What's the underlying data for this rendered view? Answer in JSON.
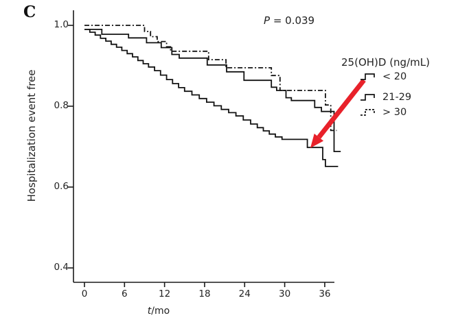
{
  "panel_label": "C",
  "annotation": {
    "p_symbol": "P",
    "p_rest": " = 0.039"
  },
  "y_axis": {
    "title": "Hospitalization event free",
    "tick_labels": [
      "1.0",
      "0.8",
      "0.6",
      "0.4"
    ],
    "tick_values": [
      1.0,
      0.8,
      0.6,
      0.4
    ]
  },
  "x_axis": {
    "title_italic": "t",
    "title_rest": "/mo",
    "tick_labels": [
      "0",
      "6",
      "12",
      "18",
      "24",
      "30",
      "36"
    ],
    "tick_values": [
      0,
      6,
      12,
      18,
      24,
      30,
      36
    ]
  },
  "legend": {
    "title": "25(OH)D (ng/mL)",
    "entries": [
      {
        "label": "< 20",
        "style": "solid"
      },
      {
        "label": "21-29",
        "style": "solid"
      },
      {
        "label": "> 30",
        "style": "dashed"
      }
    ]
  },
  "colors": {
    "curve": "#121212",
    "axis": "#1a1a1a",
    "text": "#1f1f1f",
    "arrow": "#e8212a"
  },
  "chart_data": {
    "type": "line",
    "subtype": "kaplan-meier-step",
    "p_value_text": "P = 0.039",
    "xlabel": "t/mo",
    "ylabel": "Hospitalization event free",
    "xlim": [
      0,
      38.5
    ],
    "ylim": [
      0.37,
      1.02
    ],
    "grid": false,
    "legend_position": "right-outside",
    "series": [
      {
        "name": "< 20",
        "dash": "solid",
        "end_t": 38.0,
        "points": [
          [
            0,
            0.99
          ],
          [
            0.8,
            0.983
          ],
          [
            1.6,
            0.976
          ],
          [
            2.4,
            0.968
          ],
          [
            3.2,
            0.961
          ],
          [
            4.0,
            0.953
          ],
          [
            4.8,
            0.946
          ],
          [
            5.6,
            0.938
          ],
          [
            6.4,
            0.93
          ],
          [
            7.2,
            0.922
          ],
          [
            8.0,
            0.913
          ],
          [
            8.8,
            0.905
          ],
          [
            9.6,
            0.897
          ],
          [
            10.5,
            0.888
          ],
          [
            11.4,
            0.877
          ],
          [
            12.3,
            0.866
          ],
          [
            13.2,
            0.856
          ],
          [
            14.1,
            0.846
          ],
          [
            15.0,
            0.837
          ],
          [
            16.1,
            0.828
          ],
          [
            17.2,
            0.819
          ],
          [
            18.3,
            0.81
          ],
          [
            19.4,
            0.801
          ],
          [
            20.5,
            0.792
          ],
          [
            21.6,
            0.784
          ],
          [
            22.7,
            0.776
          ],
          [
            23.8,
            0.766
          ],
          [
            24.9,
            0.756
          ],
          [
            25.9,
            0.747
          ],
          [
            26.8,
            0.739
          ],
          [
            27.7,
            0.731
          ],
          [
            28.6,
            0.724
          ],
          [
            29.6,
            0.718
          ],
          [
            33.4,
            0.698
          ],
          [
            35.7,
            0.668
          ],
          [
            36.1,
            0.651
          ]
        ]
      },
      {
        "name": "21-29",
        "dash": "solid",
        "end_t": 38.4,
        "points": [
          [
            0,
            0.99
          ],
          [
            2.6,
            0.978
          ],
          [
            6.6,
            0.969
          ],
          [
            9.3,
            0.957
          ],
          [
            11.5,
            0.945
          ],
          [
            13.1,
            0.928
          ],
          [
            14.2,
            0.919
          ],
          [
            18.4,
            0.902
          ],
          [
            21.3,
            0.885
          ],
          [
            23.9,
            0.864
          ],
          [
            28.0,
            0.847
          ],
          [
            28.8,
            0.839
          ],
          [
            30.2,
            0.821
          ],
          [
            31.0,
            0.814
          ],
          [
            34.5,
            0.797
          ],
          [
            35.5,
            0.787
          ],
          [
            37.4,
            0.688
          ]
        ]
      },
      {
        "name": "> 30",
        "dash": "dashed",
        "end_t": 37.8,
        "points": [
          [
            0,
            1.0
          ],
          [
            9.0,
            0.985
          ],
          [
            9.9,
            0.972
          ],
          [
            10.9,
            0.96
          ],
          [
            12.3,
            0.947
          ],
          [
            12.9,
            0.936
          ],
          [
            18.6,
            0.915
          ],
          [
            21.2,
            0.895
          ],
          [
            28.0,
            0.876
          ],
          [
            29.3,
            0.839
          ],
          [
            36.1,
            0.803
          ],
          [
            36.9,
            0.74
          ]
        ]
      }
    ],
    "annotation_arrow": {
      "color": "#e8212a",
      "points_to": "step of '< 20' curve near t = 33, survival = 0.70"
    }
  }
}
